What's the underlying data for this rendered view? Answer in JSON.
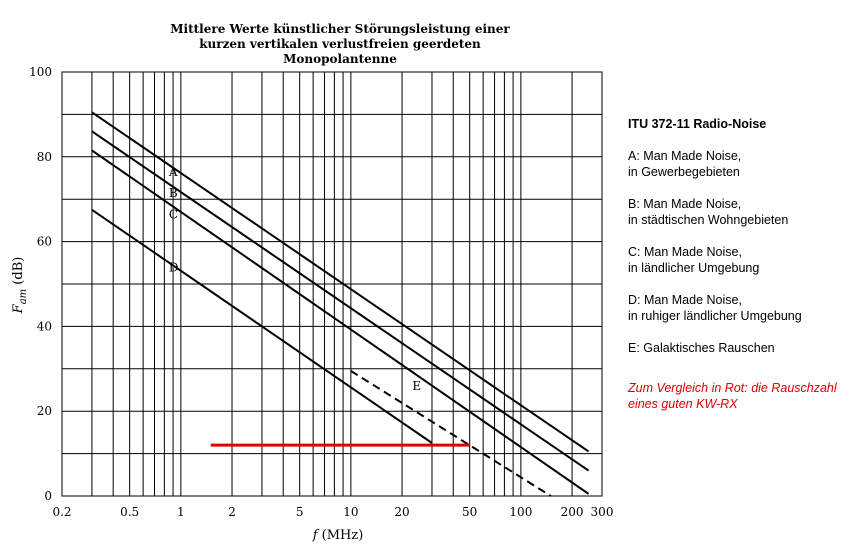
{
  "chart_data": {
    "type": "line",
    "title_lines": [
      "Mittlere Werte künstlicher Störungsleistung  einer",
      "kurzen vertikalen verlustfreien geerdeten",
      "Monopolantenne"
    ],
    "xlabel_italic": "f",
    "xlabel_rest": " (MHz)",
    "ylabel_main": "F",
    "ylabel_sub": "am",
    "ylabel_unit": " (dB)",
    "xscale": "log",
    "xlim": [
      0.2,
      300
    ],
    "ylim": [
      0,
      100
    ],
    "x_ticks": [
      0.2,
      0.5,
      1,
      2,
      5,
      10,
      20,
      50,
      100,
      200,
      300
    ],
    "x_tick_labels": [
      "0.2",
      "0.5",
      "1",
      "2",
      "5",
      "10",
      "20",
      "50",
      "100",
      "200",
      "300"
    ],
    "y_ticks": [
      0,
      20,
      40,
      60,
      80,
      100
    ],
    "y_tick_labels": [
      "0",
      "20",
      "40",
      "60",
      "80",
      "100"
    ],
    "grid": true,
    "series": [
      {
        "name": "A",
        "x": [
          0.3,
          250
        ],
        "y": [
          90.5,
          10.5
        ],
        "color": "#000000",
        "dashed": false,
        "label_at": [
          0.85,
          75.5
        ]
      },
      {
        "name": "B",
        "x": [
          0.3,
          250
        ],
        "y": [
          86,
          6
        ],
        "color": "#000000",
        "dashed": false,
        "label_at": [
          0.85,
          70.5
        ]
      },
      {
        "name": "C",
        "x": [
          0.3,
          250
        ],
        "y": [
          81.5,
          0.5
        ],
        "color": "#000000",
        "dashed": false,
        "label_at": [
          0.85,
          65.5
        ]
      },
      {
        "name": "D",
        "x": [
          0.3,
          30
        ],
        "y": [
          67.5,
          12.5
        ],
        "color": "#000000",
        "dashed": false,
        "label_at": [
          0.85,
          53
        ]
      },
      {
        "name": "E",
        "x": [
          10,
          150
        ],
        "y": [
          29.5,
          0
        ],
        "color": "#000000",
        "dashed": true,
        "label_at": [
          23,
          25
        ]
      },
      {
        "name": "",
        "x": [
          1.5,
          50
        ],
        "y": [
          12,
          12
        ],
        "color": "#e00000",
        "dashed": false
      }
    ]
  },
  "legend": {
    "heading": "ITU 372-11 Radio-Noise",
    "entries": [
      [
        "A: Man Made Noise,",
        "in Gewerbegebieten"
      ],
      [
        "B: Man Made Noise,",
        "in städtischen Wohngebieten"
      ],
      [
        "C: Man Made Noise,",
        "in ländlicher Umgebung"
      ],
      [
        "D: Man Made Noise,",
        "in ruhiger ländlicher Umgebung"
      ],
      [
        "E: Galaktisches Rauschen"
      ]
    ],
    "note_lines": [
      "Zum Vergleich in Rot: die Rauschzahl",
      "eines guten KW-RX"
    ],
    "note_color": "#e00000"
  }
}
